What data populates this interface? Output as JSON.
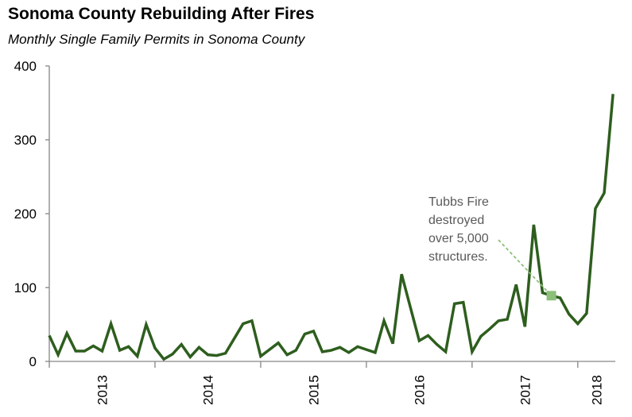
{
  "chart_data": {
    "type": "line",
    "title": "Sonoma County Rebuilding After Fires",
    "subtitle": "Monthly Single Family Permits in Sonoma County",
    "xlabel": "",
    "ylabel": "",
    "ylim": [
      0,
      400
    ],
    "yticks": [
      0,
      100,
      200,
      300,
      400
    ],
    "x_start": "2013-01",
    "x_end": "2018-05",
    "xtick_labels": [
      "2013",
      "2014",
      "2015",
      "2016",
      "2017",
      "2018"
    ],
    "grid": false,
    "colors": {
      "line": "#2e5e1e",
      "annotation_marker": "#8cbf7a",
      "annotation_text": "#595959"
    },
    "series": [
      {
        "values": [
          35,
          9,
          38,
          14,
          14,
          21,
          14,
          51,
          15,
          20,
          7,
          50,
          18,
          3,
          10,
          23,
          6,
          19,
          9,
          8,
          11,
          31,
          51,
          55,
          7,
          16,
          25,
          9,
          15,
          37,
          41,
          13,
          15,
          19,
          12,
          20,
          16,
          12,
          55,
          24,
          118,
          73,
          28,
          35,
          23,
          13,
          78,
          80,
          13,
          34,
          44,
          55,
          57,
          104,
          47,
          185,
          93,
          89,
          86,
          64,
          51,
          65,
          207,
          228,
          362
        ]
      }
    ],
    "annotation": {
      "month": "2017-10",
      "value": 89,
      "lines": [
        "Tubbs Fire",
        "destroyed",
        "over 5,000",
        "structures."
      ]
    }
  }
}
